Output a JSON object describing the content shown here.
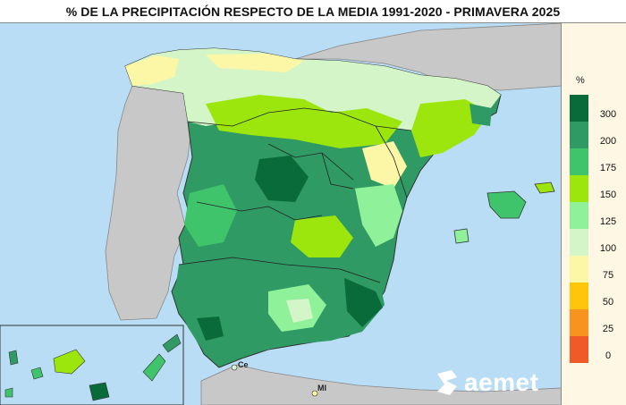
{
  "title": "% DE LA PRECIPITACIÓN RESPECTO DE LA MEDIA 1991-2020 - PRIMAVERA 2025",
  "legend": {
    "unit": "%",
    "ticks": [
      "300",
      "200",
      "175",
      "150",
      "125",
      "100",
      "75",
      "50",
      "25",
      "0"
    ],
    "colors": [
      "#0a6b3a",
      "#2f9a63",
      "#3fc46c",
      "#9ce60e",
      "#8ff29a",
      "#d4f5c8",
      "#fbf7a6",
      "#ffc40c",
      "#f7931e",
      "#ef5a28"
    ]
  },
  "map": {
    "sea_color": "#b9ddf5",
    "land_outside_color": "#c8c8c8",
    "places": [
      {
        "label": "Ce"
      },
      {
        "label": "MI"
      }
    ]
  },
  "logo": {
    "text": "aemet"
  }
}
